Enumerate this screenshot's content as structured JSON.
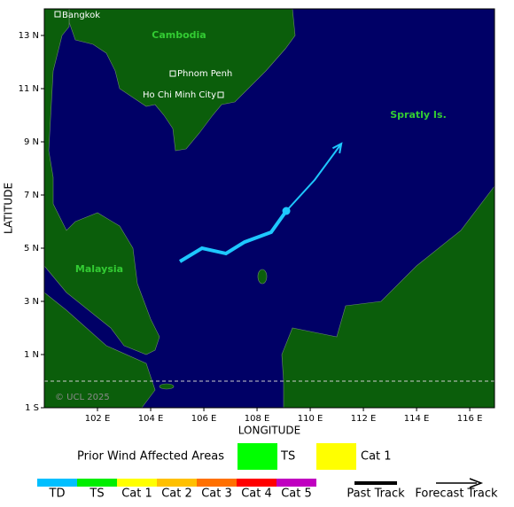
{
  "map": {
    "x_label": "LONGITUDE",
    "y_label": "LATITUDE",
    "xlim": [
      100,
      116.93
    ],
    "ylim": [
      -1,
      14
    ],
    "xticks": [
      {
        "value": 102,
        "label": "102 E"
      },
      {
        "value": 104,
        "label": "104 E"
      },
      {
        "value": 106,
        "label": "106 E"
      },
      {
        "value": 108,
        "label": "108 E"
      },
      {
        "value": 110,
        "label": "110 E"
      },
      {
        "value": 112,
        "label": "112 E"
      },
      {
        "value": 114,
        "label": "114 E"
      },
      {
        "value": 116,
        "label": "116 E"
      }
    ],
    "yticks": [
      {
        "value": 13,
        "label": "13 N"
      },
      {
        "value": 11,
        "label": "11 N"
      },
      {
        "value": 9,
        "label": "9 N"
      },
      {
        "value": 7,
        "label": "7 N"
      },
      {
        "value": 5,
        "label": "5 N"
      },
      {
        "value": 3,
        "label": "3 N"
      },
      {
        "value": 1,
        "label": "1 N"
      },
      {
        "value": -1,
        "label": "1 S"
      }
    ],
    "track": {
      "color": "#1ec8ff",
      "lon": [
        105.1,
        105.93,
        106.83,
        107.53,
        108.53,
        109.1
      ],
      "lat": [
        4.5,
        5.0,
        4.8,
        5.23,
        5.6,
        6.4
      ]
    },
    "forecast": {
      "color": "#1ec8ff",
      "lon": [
        109.1,
        110.17,
        111.17
      ],
      "lat": [
        6.4,
        7.57,
        8.93
      ]
    }
  },
  "labels": {
    "cambodia": "Cambodia",
    "malaysia": "Malaysia",
    "spratly": "Spratly Is.",
    "bangkok": "Bangkok",
    "phnom_penh": "Phnom Penh",
    "ho_chi_minh": "Ho Chi Minh City",
    "copyright": "© UCL 2025"
  },
  "legend": {
    "prior_title": "Prior Wind Affected Areas",
    "prior": [
      "TS",
      "Cat 1"
    ],
    "scale": [
      {
        "name": "TD",
        "color": "#00bfff"
      },
      {
        "name": "TS",
        "color": "#00ee00"
      },
      {
        "name": "Cat 1",
        "color": "#ffff00"
      },
      {
        "name": "Cat 2",
        "color": "#ffc000"
      },
      {
        "name": "Cat 3",
        "color": "#ff7000"
      },
      {
        "name": "Cat 4",
        "color": "#ff0000"
      },
      {
        "name": "Cat 5",
        "color": "#c000c0"
      }
    ],
    "past_track": "Past Track",
    "forecast_track": "Forecast Track"
  }
}
